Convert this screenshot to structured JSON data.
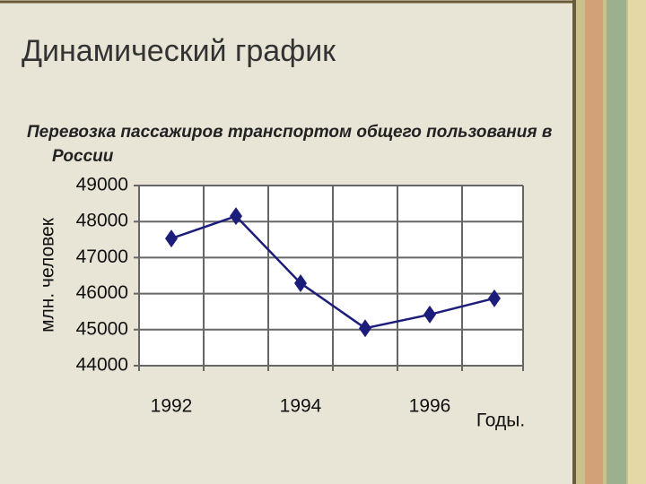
{
  "title": "Динамический график",
  "chart_data": {
    "type": "line",
    "subtitle": "Перевозка пассажиров транспортом общего пользования в России",
    "y_label": "млн. человек",
    "x_label": "Годы.",
    "categories": [
      "1992",
      null,
      "1994",
      null,
      "1996",
      null
    ],
    "series": [
      {
        "name": "Перевозка пассажиров",
        "color": "#1c1c7a",
        "values": [
          47530,
          48150,
          46290,
          45040,
          45420,
          45870
        ]
      }
    ],
    "ylim": [
      44000,
      49000
    ],
    "yticks": [
      44000,
      45000,
      46000,
      47000,
      48000,
      49000
    ],
    "grid": true
  }
}
